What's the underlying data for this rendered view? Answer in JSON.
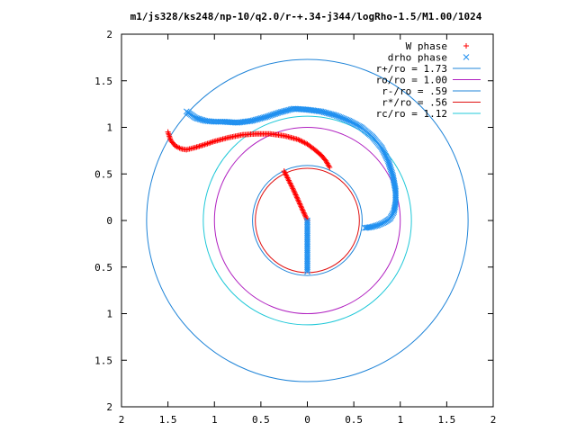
{
  "chart_data": {
    "type": "scatter",
    "title": "m1/js328/ks248/np-10/q2.0/r-+.34-j344/logRho-1.5/M1.00/1024",
    "xlim": [
      -2,
      2
    ],
    "ylim": [
      -2,
      2
    ],
    "x_tick_values": [
      -2,
      -1.5,
      -1,
      -0.5,
      0,
      0.5,
      1,
      1.5,
      2
    ],
    "x_tick_labels": [
      "2",
      "1.5",
      "1",
      "0.5",
      "0",
      "0.5",
      "1",
      "1.5",
      "2"
    ],
    "y_tick_values": [
      2,
      1.5,
      1,
      0.5,
      0,
      -0.5,
      -1,
      -1.5,
      -2
    ],
    "y_tick_labels": [
      "2",
      "1.5",
      "1",
      "0.5",
      "0",
      "0.5",
      "1",
      "1.5",
      "2"
    ],
    "grid": false,
    "legend_position": "top-right",
    "series": [
      {
        "name": "W phase",
        "kind": "points",
        "marker": "plus",
        "color": "#ff0000",
        "x": [
          -1.5,
          -1.47,
          -1.42,
          -1.36,
          -1.3,
          -1.22,
          -1.12,
          -1.0,
          -0.85,
          -0.7,
          -0.55,
          -0.4,
          -0.25,
          -0.1,
          0.0,
          0.08,
          0.15,
          0.2,
          0.24
        ],
        "y": [
          0.95,
          0.86,
          0.8,
          0.77,
          0.76,
          0.78,
          0.81,
          0.85,
          0.89,
          0.92,
          0.93,
          0.93,
          0.91,
          0.87,
          0.82,
          0.76,
          0.7,
          0.64,
          0.57
        ]
      },
      {
        "name": "W phase",
        "kind": "points",
        "marker": "plus",
        "color": "#ff0000",
        "x": [
          -0.25,
          -0.2,
          -0.15,
          -0.1,
          -0.05,
          0.0
        ],
        "y": [
          0.53,
          0.43,
          0.33,
          0.22,
          0.11,
          0.0
        ]
      },
      {
        "name": "drho phase",
        "kind": "points",
        "marker": "cross",
        "color": "#2090f0",
        "x": [
          -1.3,
          -1.2,
          -1.1,
          -1.0,
          -0.9,
          -0.75,
          -0.6,
          -0.45,
          -0.3,
          -0.15,
          0.0,
          0.15,
          0.3,
          0.45,
          0.58,
          0.7,
          0.8,
          0.87,
          0.92,
          0.95,
          0.95,
          0.93,
          0.89,
          0.83,
          0.76,
          0.69,
          0.62
        ],
        "y": [
          1.17,
          1.1,
          1.07,
          1.06,
          1.06,
          1.05,
          1.07,
          1.11,
          1.16,
          1.2,
          1.19,
          1.17,
          1.13,
          1.07,
          1.0,
          0.9,
          0.78,
          0.64,
          0.48,
          0.32,
          0.19,
          0.09,
          0.02,
          -0.02,
          -0.05,
          -0.07,
          -0.08
        ]
      },
      {
        "name": "drho phase",
        "kind": "points",
        "marker": "cross",
        "color": "#2090f0",
        "x": [
          0.0,
          0.0,
          0.0,
          0.0,
          0.0,
          0.0,
          0.0,
          0.0,
          0.0,
          0.0,
          0.0,
          0.0
        ],
        "y": [
          0.0,
          -0.05,
          -0.1,
          -0.15,
          -0.2,
          -0.25,
          -0.3,
          -0.35,
          -0.4,
          -0.45,
          -0.5,
          -0.55
        ]
      }
    ],
    "circles": [
      {
        "name": "r+/ro = 1.73",
        "radius": 1.73,
        "color": "#1f84d8"
      },
      {
        "name": "ro/ro = 1.00",
        "radius": 1.0,
        "color": "#b020c0"
      },
      {
        "name": "r-/ro = .59",
        "radius": 0.59,
        "color": "#1f84d8"
      },
      {
        "name": "r*/ro = .56",
        "radius": 0.56,
        "color": "#e01010"
      },
      {
        "name": "rc/ro = 1.12",
        "radius": 1.12,
        "color": "#20c8d8"
      }
    ]
  }
}
